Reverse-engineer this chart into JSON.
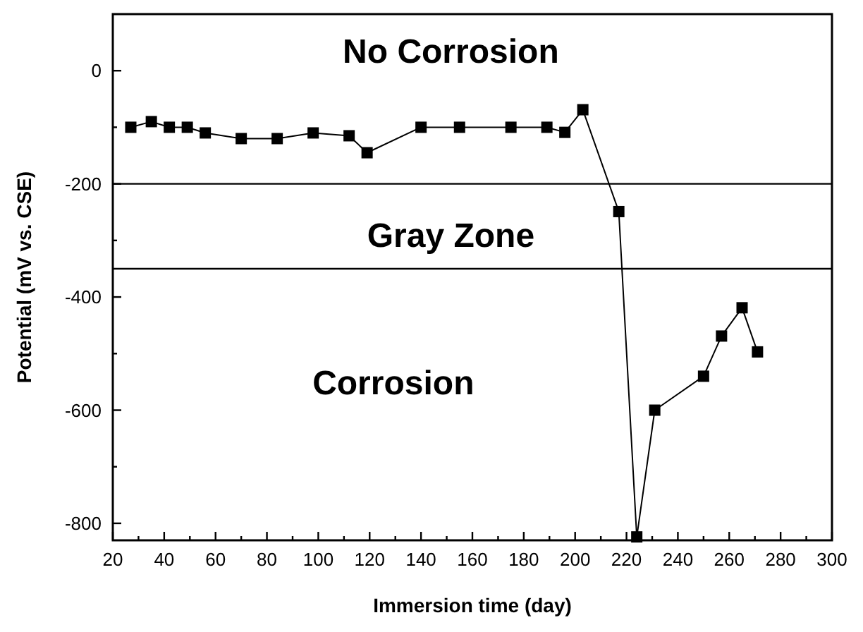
{
  "chart_data": {
    "type": "line",
    "xlabel": "Immersion time (day)",
    "ylabel": "Potential (mV vs. CSE)",
    "x": [
      27,
      35,
      42,
      49,
      56,
      70,
      84,
      98,
      112,
      119,
      140,
      155,
      175,
      189,
      196,
      203,
      217,
      224,
      231,
      250,
      257,
      265,
      271
    ],
    "series": [
      {
        "color": "#000000",
        "values": [
          -100,
          -90,
          -100,
          -100,
          -110,
          -120,
          -120,
          -110,
          -115,
          -145,
          -100,
          -100,
          -100,
          -100,
          -109,
          -69,
          -249,
          -824,
          -600,
          -540,
          -469,
          -419,
          -497
        ]
      }
    ],
    "marker": "square",
    "line_style": "solid",
    "grid": false,
    "xlim": [
      20,
      300
    ],
    "ylim": [
      -830,
      100
    ],
    "xticks": [
      20,
      {
        "value": 30,
        "label": null
      },
      40,
      {
        "value": 50,
        "label": null
      },
      60,
      {
        "value": 70,
        "label": null
      },
      80,
      {
        "value": 90,
        "label": null
      },
      100,
      {
        "value": 110,
        "label": null
      },
      120,
      {
        "value": 130,
        "label": null
      },
      140,
      {
        "value": 150,
        "label": null
      },
      160,
      {
        "value": 170,
        "label": null
      },
      180,
      {
        "value": 190,
        "label": null
      },
      200,
      {
        "value": 210,
        "label": null
      },
      220,
      {
        "value": 230,
        "label": null
      },
      240,
      {
        "value": 250,
        "label": null
      },
      260,
      {
        "value": 270,
        "label": null
      },
      280,
      {
        "value": 290,
        "label": null
      },
      300
    ],
    "yticks": [
      -800,
      {
        "value": -700,
        "label": null
      },
      -600,
      {
        "value": -500,
        "label": null
      },
      -400,
      {
        "value": -300,
        "label": null
      },
      -200,
      {
        "value": -100,
        "label": null
      },
      0
    ],
    "ref_lines": [
      {
        "axis": "y",
        "value": -200,
        "color": "#000000"
      },
      {
        "axis": "y",
        "value": -350,
        "color": "#000000"
      }
    ],
    "annotations": [
      "No Corrosion",
      "Gray Zone",
      "Corrosion"
    ]
  }
}
